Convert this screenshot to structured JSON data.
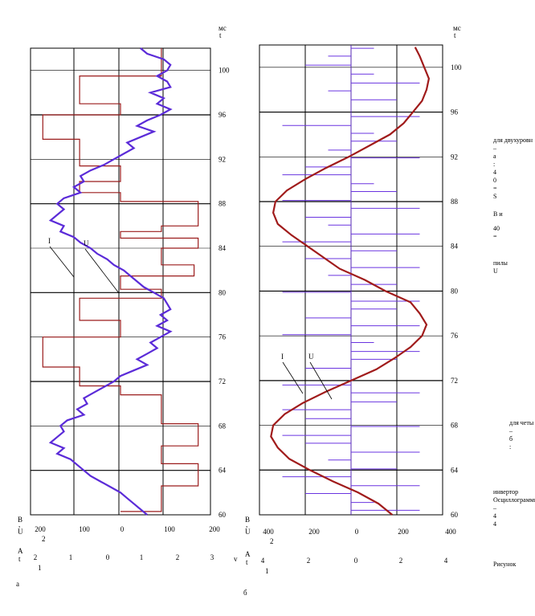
{
  "chart_data": [
    {
      "panel": "a",
      "type": "line",
      "time_unit_top": "мс",
      "time_unit_bottom": "t",
      "time_ticks": [
        100,
        96,
        92,
        88,
        84,
        80,
        76,
        72,
        68,
        64,
        60
      ],
      "time_range": [
        60,
        102
      ],
      "u_axis": {
        "labels": [
          "В",
          ",",
          "U"
        ],
        "ticks": [
          "200",
          "100",
          "0",
          "100",
          "200"
        ],
        "tick_values": [
          -200,
          -100,
          0,
          100,
          200
        ],
        "mult": "2",
        "range": [
          -220,
          220
        ]
      },
      "i_axis": {
        "labels": [
          "А",
          "t"
        ],
        "ticks": [
          "2",
          "1",
          "0",
          "1",
          "2",
          "3"
        ],
        "tick_values": [
          -2,
          -1,
          0,
          1,
          2,
          3
        ],
        "mult": "1",
        "range": [
          -2.2,
          3.2
        ]
      },
      "axis_end_label": "v",
      "annotations": [
        "I",
        "U"
      ],
      "caption": "а",
      "series": [
        {
          "name": "U",
          "color": "#9b1c1c",
          "values": [
            [
              102,
              100
            ],
            [
              99.5,
              100
            ],
            [
              99.5,
              -100
            ],
            [
              97,
              -100
            ],
            [
              97,
              0
            ],
            [
              96,
              0
            ],
            [
              96,
              -190
            ],
            [
              93.8,
              -190
            ],
            [
              93.8,
              -100
            ],
            [
              91.4,
              -100
            ],
            [
              91.4,
              0
            ],
            [
              90,
              0
            ],
            [
              90,
              -100
            ],
            [
              89,
              -100
            ],
            [
              89,
              0
            ],
            [
              88.2,
              0
            ],
            [
              88.2,
              190
            ],
            [
              86,
              190
            ],
            [
              86,
              100
            ],
            [
              85.5,
              100
            ],
            [
              85.5,
              0
            ],
            [
              84.9,
              0
            ],
            [
              84.9,
              190
            ],
            [
              84,
              190
            ],
            [
              84,
              100
            ],
            [
              82.5,
              100
            ],
            [
              82.5,
              180
            ],
            [
              81.5,
              180
            ],
            [
              81.5,
              0
            ],
            [
              80.3,
              0
            ],
            [
              80.3,
              100
            ],
            [
              79.5,
              100
            ],
            [
              79.5,
              -100
            ],
            [
              77.5,
              -100
            ],
            [
              77.5,
              0
            ],
            [
              76,
              0
            ],
            [
              76,
              -190
            ],
            [
              73.3,
              -190
            ],
            [
              73.3,
              -100
            ],
            [
              71.6,
              -100
            ],
            [
              71.6,
              0
            ],
            [
              70.8,
              0
            ],
            [
              70.8,
              100
            ],
            [
              68.2,
              100
            ],
            [
              68.2,
              190
            ],
            [
              66.2,
              190
            ],
            [
              66.2,
              100
            ],
            [
              64.6,
              100
            ],
            [
              64.6,
              190
            ],
            [
              62.6,
              190
            ],
            [
              62.6,
              100
            ],
            [
              60.3,
              100
            ],
            [
              60.3,
              0
            ]
          ]
        },
        {
          "name": "I",
          "color": "#5b2bd8",
          "values": [
            [
              102,
              1.1
            ],
            [
              101.5,
              1.3
            ],
            [
              101,
              1.8
            ],
            [
              100.5,
              2.0
            ],
            [
              100,
              1.9
            ],
            [
              99.5,
              1.6
            ],
            [
              99,
              1.9
            ],
            [
              98.5,
              2.0
            ],
            [
              98,
              1.4
            ],
            [
              97.5,
              1.8
            ],
            [
              97,
              1.6
            ],
            [
              96.5,
              2.0
            ],
            [
              96,
              1.7
            ],
            [
              95.5,
              1.3
            ],
            [
              95,
              1.0
            ],
            [
              94.5,
              1.5
            ],
            [
              94,
              1.1
            ],
            [
              93.5,
              0.7
            ],
            [
              93,
              0.9
            ],
            [
              92.5,
              0.6
            ],
            [
              92,
              0.3
            ],
            [
              91.5,
              0.0
            ],
            [
              91,
              -0.4
            ],
            [
              90.5,
              -0.7
            ],
            [
              90,
              -0.6
            ],
            [
              89.5,
              -0.9
            ],
            [
              89,
              -0.7
            ],
            [
              88.5,
              -1.2
            ],
            [
              88,
              -1.4
            ],
            [
              87.5,
              -1.2
            ],
            [
              87,
              -1.4
            ],
            [
              86.5,
              -1.6
            ],
            [
              86,
              -1.2
            ],
            [
              85.5,
              -1.3
            ],
            [
              85,
              -0.9
            ],
            [
              84.5,
              -0.7
            ],
            [
              84,
              -0.4
            ],
            [
              83.5,
              -0.2
            ],
            [
              83,
              0.1
            ],
            [
              82.5,
              0.3
            ],
            [
              82,
              0.6
            ],
            [
              81.5,
              0.8
            ],
            [
              81,
              1.0
            ],
            [
              80.5,
              1.2
            ],
            [
              80,
              1.5
            ],
            [
              79.5,
              1.8
            ],
            [
              79,
              1.9
            ],
            [
              78.5,
              2.0
            ],
            [
              78,
              1.7
            ],
            [
              77.5,
              1.9
            ],
            [
              77,
              1.6
            ],
            [
              76.5,
              2.0
            ],
            [
              76,
              1.7
            ],
            [
              75.5,
              1.4
            ],
            [
              75,
              1.6
            ],
            [
              74.5,
              1.3
            ],
            [
              74,
              1.0
            ],
            [
              73.5,
              1.3
            ],
            [
              73,
              0.9
            ],
            [
              72.5,
              0.5
            ],
            [
              72,
              0.3
            ],
            [
              71.5,
              0.0
            ],
            [
              71,
              -0.3
            ],
            [
              70.5,
              -0.6
            ],
            [
              70,
              -0.5
            ],
            [
              69.5,
              -0.8
            ],
            [
              69,
              -0.6
            ],
            [
              68.5,
              -1.1
            ],
            [
              68,
              -1.3
            ],
            [
              67.5,
              -1.2
            ],
            [
              67,
              -1.4
            ],
            [
              66.5,
              -1.6
            ],
            [
              66,
              -1.2
            ],
            [
              65.5,
              -1.4
            ],
            [
              65,
              -1.0
            ],
            [
              64.5,
              -0.8
            ],
            [
              64,
              -0.6
            ],
            [
              63.5,
              -0.4
            ],
            [
              63,
              -0.1
            ],
            [
              62.5,
              0.2
            ],
            [
              62,
              0.5
            ],
            [
              61.5,
              0.7
            ],
            [
              61,
              0.9
            ],
            [
              60.5,
              1.1
            ],
            [
              60,
              1.3
            ]
          ]
        }
      ]
    },
    {
      "panel": "б",
      "type": "line",
      "time_unit_top": "мс",
      "time_unit_bottom": "t",
      "time_ticks": [
        100,
        96,
        92,
        88,
        84,
        80,
        76,
        72,
        68,
        64,
        60
      ],
      "time_range": [
        60,
        102
      ],
      "u_axis": {
        "labels": [
          "В",
          ",",
          "U"
        ],
        "ticks": [
          "400",
          "200",
          "0",
          "200",
          "400"
        ],
        "tick_values": [
          -400,
          -200,
          0,
          200,
          400
        ],
        "mult": "2",
        "range": [
          -400,
          400
        ]
      },
      "i_axis": {
        "labels": [
          "А",
          "t"
        ],
        "ticks": [
          "4",
          "2",
          "0",
          "2",
          "4"
        ],
        "tick_values": [
          -4,
          -2,
          0,
          2,
          4
        ],
        "mult": "1",
        "range": [
          -4,
          4
        ]
      },
      "annotations": [
        "I",
        "U"
      ],
      "caption": "б",
      "series": [
        {
          "name": "U",
          "color": "#6a34e0",
          "levels": [
            [
              101.7,
              100
            ],
            [
              101,
              -100
            ],
            [
              100.2,
              -200
            ],
            [
              99.4,
              100
            ],
            [
              98.6,
              300
            ],
            [
              97.9,
              -100
            ],
            [
              97.1,
              200
            ],
            [
              96.3,
              0
            ],
            [
              95.6,
              300
            ],
            [
              94.8,
              -300
            ],
            [
              94.1,
              100
            ],
            [
              93.4,
              200
            ],
            [
              92.6,
              -100
            ],
            [
              91.9,
              300
            ],
            [
              91.1,
              -200
            ],
            [
              90.4,
              -300
            ],
            [
              89.6,
              100
            ],
            [
              88.9,
              200
            ],
            [
              88.1,
              -300
            ],
            [
              87.4,
              300
            ],
            [
              86.6,
              -200
            ],
            [
              85.9,
              -100
            ],
            [
              85.1,
              300
            ],
            [
              84.4,
              -300
            ],
            [
              83.6,
              200
            ],
            [
              82.9,
              -200
            ],
            [
              82.1,
              300
            ],
            [
              81.4,
              -100
            ],
            [
              80.6,
              200
            ],
            [
              79.9,
              -300
            ],
            [
              79.1,
              300
            ],
            [
              78.4,
              200
            ],
            [
              77.6,
              -200
            ],
            [
              76.9,
              300
            ],
            [
              76.1,
              -300
            ],
            [
              75.4,
              100
            ],
            [
              74.6,
              300
            ],
            [
              73.9,
              200
            ],
            [
              73.1,
              -200
            ],
            [
              72.4,
              0
            ],
            [
              71.6,
              -300
            ],
            [
              70.9,
              300
            ],
            [
              70.1,
              200
            ],
            [
              69.4,
              -300
            ],
            [
              68.6,
              -200
            ],
            [
              67.9,
              300
            ],
            [
              67.1,
              -300
            ],
            [
              66.4,
              -200
            ],
            [
              65.6,
              300
            ],
            [
              64.9,
              -100
            ],
            [
              64.1,
              200
            ],
            [
              63.4,
              -300
            ],
            [
              62.6,
              300
            ],
            [
              61.9,
              -200
            ],
            [
              61.1,
              100
            ],
            [
              60.4,
              300
            ]
          ]
        },
        {
          "name": "I",
          "color": "#a01b1b",
          "values": [
            [
              101.8,
              2.8
            ],
            [
              101,
              3.0
            ],
            [
              100,
              3.2
            ],
            [
              99,
              3.4
            ],
            [
              98,
              3.3
            ],
            [
              97,
              3.1
            ],
            [
              96,
              2.7
            ],
            [
              95,
              2.3
            ],
            [
              94,
              1.7
            ],
            [
              93,
              0.8
            ],
            [
              92,
              -0.1
            ],
            [
              91,
              -1.1
            ],
            [
              90,
              -2.0
            ],
            [
              89,
              -2.8
            ],
            [
              88,
              -3.3
            ],
            [
              87,
              -3.4
            ],
            [
              86,
              -3.2
            ],
            [
              85,
              -2.6
            ],
            [
              84,
              -1.9
            ],
            [
              83,
              -1.2
            ],
            [
              82,
              -0.5
            ],
            [
              81,
              0.6
            ],
            [
              80,
              1.5
            ],
            [
              79,
              2.6
            ],
            [
              78,
              3.0
            ],
            [
              77,
              3.3
            ],
            [
              76,
              3.1
            ],
            [
              75,
              2.6
            ],
            [
              74,
              1.9
            ],
            [
              73,
              1.1
            ],
            [
              72,
              0.0
            ],
            [
              71,
              -1.1
            ],
            [
              70,
              -2.1
            ],
            [
              69,
              -2.9
            ],
            [
              68,
              -3.4
            ],
            [
              67,
              -3.5
            ],
            [
              66,
              -3.2
            ],
            [
              65,
              -2.7
            ],
            [
              64,
              -1.8
            ],
            [
              63,
              -0.8
            ],
            [
              62,
              0.3
            ],
            [
              61,
              1.2
            ],
            [
              60,
              1.8
            ]
          ]
        }
      ]
    }
  ],
  "side_text": {
    "block1": "для двухуровн\n–\na\n:\n4\n0\n=\nS",
    "block2": "В и",
    "block3": "40\n=",
    "block4": "пилы\nU",
    "block5": "для четы\n–\nб\n:",
    "block6": "инвертор\nОсциллограммы\n–\n4\n4",
    "block7": "Рисунок"
  }
}
